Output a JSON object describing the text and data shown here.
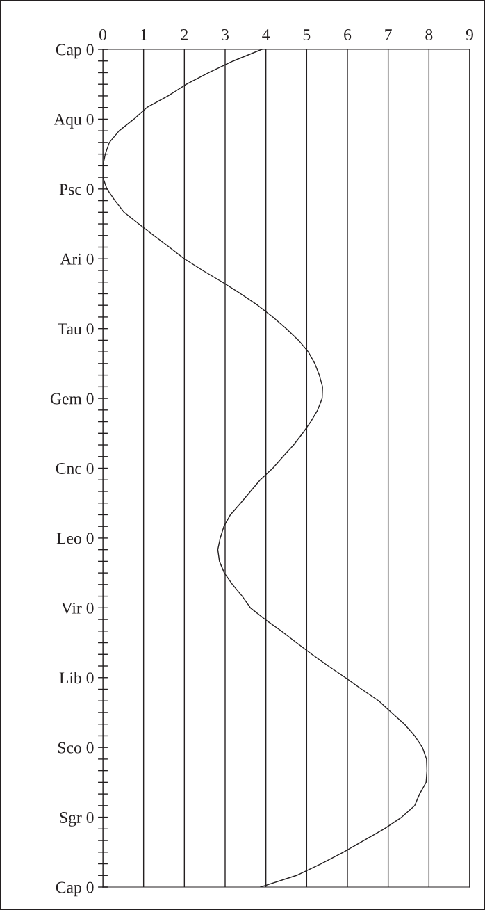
{
  "chart_data": {
    "type": "line",
    "orientation": "horizontal",
    "grid": "x",
    "line_style": "solid",
    "marker": "none",
    "xlim": [
      0,
      9
    ],
    "xticks": [
      0,
      1,
      2,
      3,
      4,
      5,
      6,
      7,
      8,
      9
    ],
    "categories": [
      "Cap 0",
      null,
      null,
      null,
      null,
      null,
      "Aqu 0",
      null,
      null,
      null,
      null,
      null,
      "Psc 0",
      null,
      null,
      null,
      null,
      null,
      "Ari 0",
      null,
      null,
      null,
      null,
      null,
      "Tau 0",
      null,
      null,
      null,
      null,
      null,
      "Gem 0",
      null,
      null,
      null,
      null,
      null,
      "Cnc 0",
      null,
      null,
      null,
      null,
      null,
      "Leo 0",
      null,
      null,
      null,
      null,
      null,
      "Vir 0",
      null,
      null,
      null,
      null,
      null,
      "Lib 0",
      null,
      null,
      null,
      null,
      null,
      "Sco 0",
      null,
      null,
      null,
      null,
      null,
      "Sgr 0",
      null,
      null,
      null,
      null,
      null,
      "Cap 0"
    ],
    "series": [
      {
        "color": "#231f20",
        "values": [
          3.9,
          3.2,
          2.6,
          2.05,
          1.6,
          1.08,
          0.76,
          0.4,
          0.16,
          0.06,
          0.0,
          0.0,
          0.1,
          0.3,
          0.52,
          0.88,
          1.25,
          1.63,
          2.0,
          2.45,
          2.93,
          3.38,
          3.8,
          4.17,
          4.5,
          4.8,
          5.04,
          5.2,
          5.31,
          5.39,
          5.38,
          5.27,
          5.1,
          4.9,
          4.68,
          4.42,
          4.17,
          3.86,
          3.62,
          3.38,
          3.13,
          2.97,
          2.88,
          2.82,
          2.86,
          2.98,
          3.18,
          3.42,
          3.62,
          3.98,
          4.38,
          4.75,
          5.13,
          5.53,
          5.95,
          6.35,
          6.77,
          7.08,
          7.4,
          7.65,
          7.84,
          7.94,
          7.95,
          7.93,
          7.77,
          7.65,
          7.33,
          6.9,
          6.4,
          5.9,
          5.35,
          4.75,
          3.87
        ]
      }
    ]
  }
}
